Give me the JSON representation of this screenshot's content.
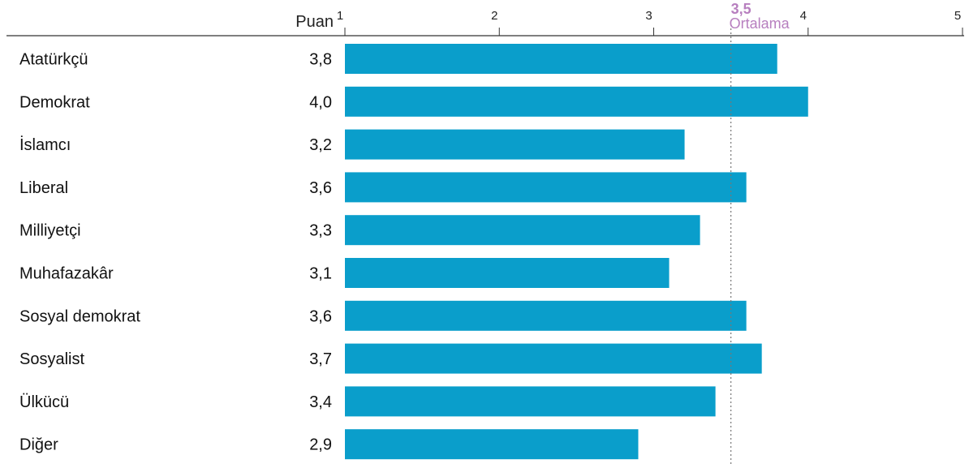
{
  "chart_data": {
    "type": "bar",
    "orientation": "horizontal",
    "axis_label": "Puan",
    "xlim": [
      1,
      5
    ],
    "ticks": [
      1,
      2,
      3,
      4,
      5
    ],
    "categories": [
      "Atatürkçü",
      "Demokrat",
      "İslamcı",
      "Liberal",
      "Milliyetçi",
      "Muhafazakâr",
      "Sosyal demokrat",
      "Sosyalist",
      "Ülkücü",
      "Diğer"
    ],
    "values": [
      3.8,
      4.0,
      3.2,
      3.6,
      3.3,
      3.1,
      3.6,
      3.7,
      3.4,
      2.9
    ],
    "value_labels": [
      "3,8",
      "4,0",
      "3,2",
      "3,6",
      "3,3",
      "3,1",
      "3,6",
      "3,7",
      "3,4",
      "2,9"
    ],
    "reference_line": {
      "value": 3.5,
      "value_label": "3,5",
      "label": "Ortalama",
      "color": "#b77fbf",
      "style": "dotted"
    },
    "bar_color": "#0a9ecb"
  }
}
